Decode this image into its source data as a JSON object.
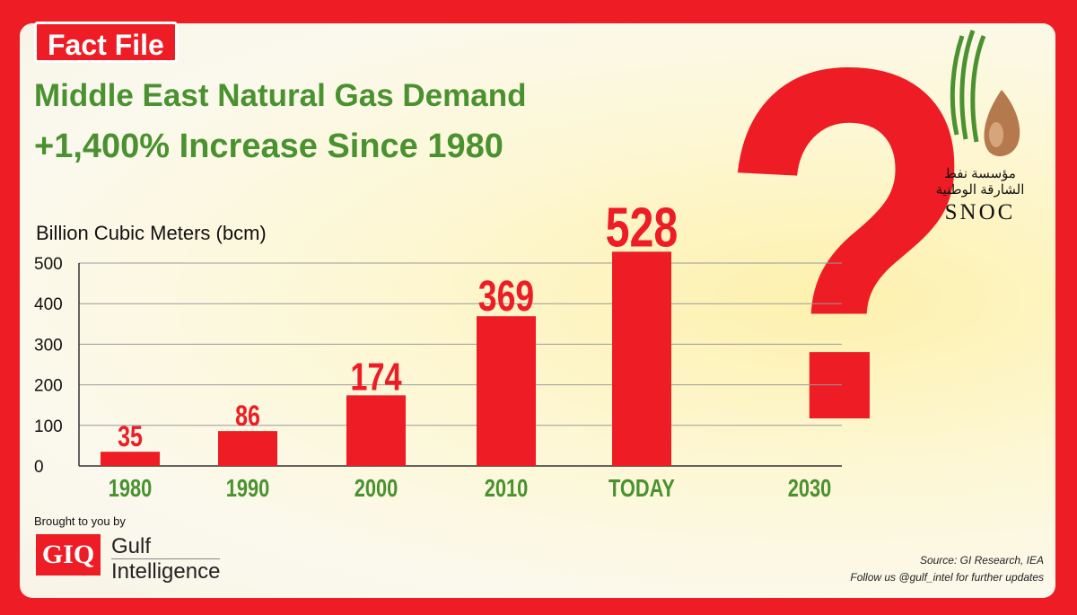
{
  "header": {
    "badge": "Fact File",
    "title": "Middle East Natural Gas Demand",
    "subtitle": "+1,400% Increase Since 1980"
  },
  "logo": {
    "arabic_line1": "مؤسسة نفط",
    "arabic_line2": "الشارقة الوطنية",
    "name": "SNOC"
  },
  "decoration": {
    "question_mark": "?"
  },
  "chart_data": {
    "type": "bar",
    "title": "Middle East Natural Gas Demand",
    "ylabel": "Billion Cubic Meters (bcm)",
    "xlabel": "",
    "categories": [
      "1980",
      "1990",
      "2000",
      "2010",
      "TODAY",
      "2030"
    ],
    "values": [
      35,
      86,
      174,
      369,
      528,
      null
    ],
    "data_labels": [
      "35",
      "86",
      "174",
      "369",
      "528",
      ""
    ],
    "yticks": [
      0,
      100,
      200,
      300,
      400,
      500
    ],
    "ylim": [
      0,
      500
    ],
    "grid": true,
    "bar_color": "#ee1c24",
    "label_color": "#ee1c24",
    "category_color": "#4a9130"
  },
  "footer": {
    "brought_by": "Brought to you by",
    "giq_logo": "GIQ",
    "giq_name_line1": "Gulf",
    "giq_name_line2": "Intelligence",
    "source": "Source: GI Research, IEA",
    "follow": "Follow us @gulf_intel for further updates"
  }
}
